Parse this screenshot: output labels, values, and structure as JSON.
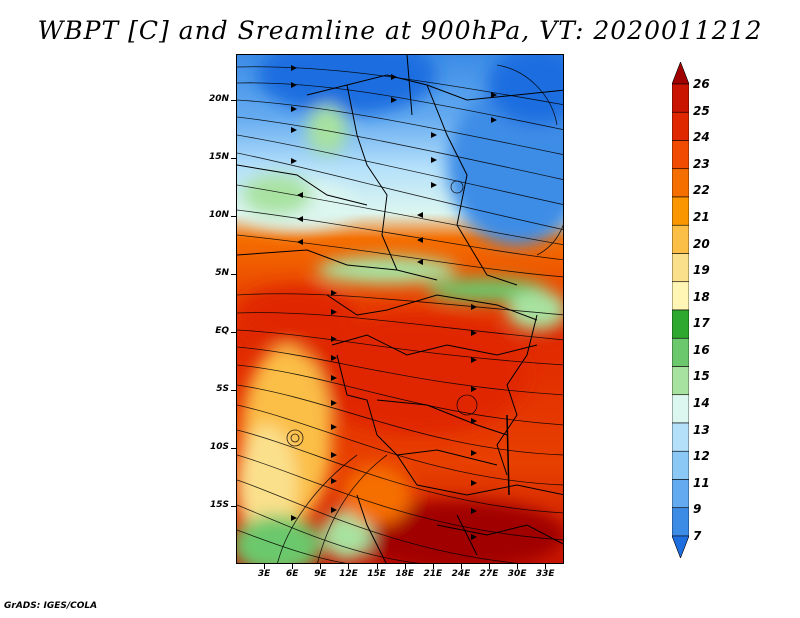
{
  "title": "WBPT [C] and Sreamline at 900hPa, VT: 2020011212",
  "credit": "GrADS: IGES/COLA",
  "map": {
    "lat_labels": [
      "20N",
      "15N",
      "10N",
      "5N",
      "EQ",
      "5S",
      "10S",
      "15S"
    ],
    "lat_values": [
      20,
      15,
      10,
      5,
      0,
      -5,
      -10,
      -15
    ],
    "lat_range": [
      -20,
      24
    ],
    "lon_labels": [
      "3E",
      "6E",
      "9E",
      "12E",
      "15E",
      "18E",
      "21E",
      "24E",
      "27E",
      "30E",
      "33E"
    ],
    "lon_values": [
      3,
      6,
      9,
      12,
      15,
      18,
      21,
      24,
      27,
      30,
      33
    ],
    "lon_range": [
      0,
      35
    ]
  },
  "colorbar": {
    "labels": [
      "26",
      "25",
      "24",
      "23",
      "22",
      "21",
      "20",
      "19",
      "18",
      "17",
      "16",
      "15",
      "14",
      "13",
      "12",
      "11",
      "9",
      "7"
    ],
    "colors": [
      "#a00000",
      "#c81400",
      "#e02800",
      "#f04b00",
      "#f56e00",
      "#fa9600",
      "#fbbe46",
      "#fbe08c",
      "#fff5b4",
      "#2ea82e",
      "#6cc86c",
      "#a8e2a0",
      "#dcf6f0",
      "#b4e0fa",
      "#8cc8f5",
      "#64aaf0",
      "#3c8ce6",
      "#1e6ee0"
    ]
  }
}
